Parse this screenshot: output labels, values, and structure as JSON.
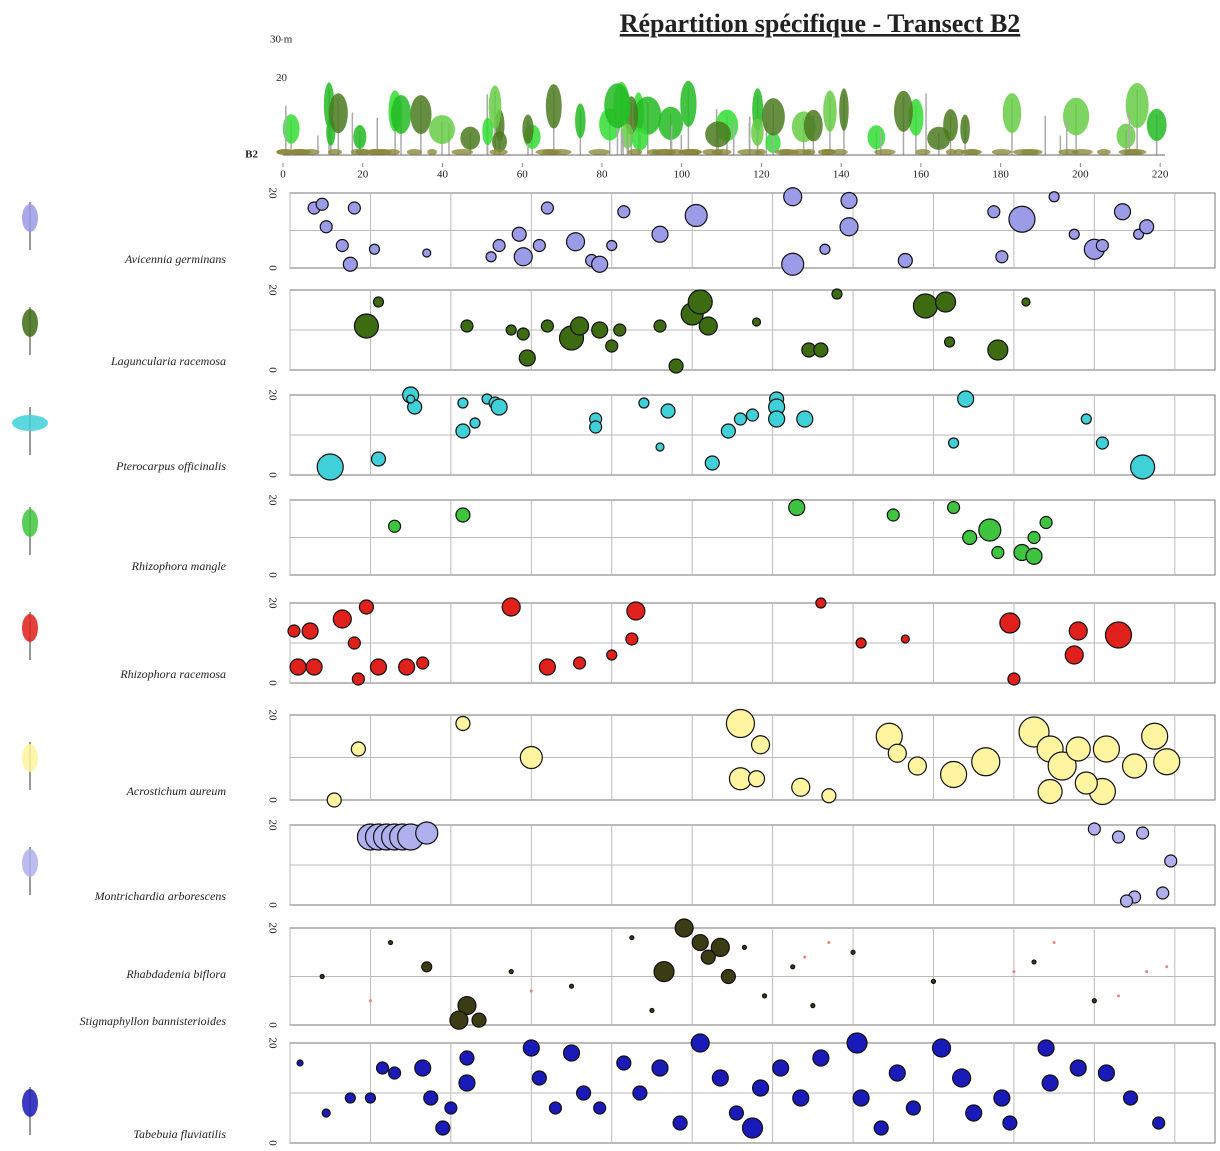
{
  "title": "Répartition spécifique - Transect B2",
  "chart_data": [
    {
      "type": "profile",
      "transect": "B2",
      "xlim": [
        0,
        230
      ],
      "xticks": [
        0,
        20,
        40,
        60,
        80,
        100,
        120,
        140,
        160,
        180,
        200,
        220
      ],
      "ylim": [
        0,
        30
      ],
      "yticks": [
        {
          "value": 30,
          "label": "30 m"
        },
        20
      ]
    },
    {
      "type": "bubble",
      "xlim": [
        0,
        230
      ],
      "ylim": [
        0,
        20
      ],
      "yticks": [
        0,
        20
      ],
      "series": [
        {
          "name": "Avicennia germinans",
          "color": "#9b9be8",
          "x": [
            6,
            8,
            9,
            13,
            15,
            16,
            21,
            34,
            50,
            52,
            57,
            58,
            62,
            64,
            71,
            75,
            77,
            80,
            83,
            92,
            101,
            125,
            125,
            133,
            139,
            139,
            153,
            175,
            177,
            182,
            190,
            195,
            200,
            202,
            207,
            211,
            213
          ],
          "values": [
            16,
            17,
            11,
            6,
            1,
            16,
            5,
            4,
            3,
            6,
            9,
            3,
            6,
            16,
            7,
            2,
            1,
            6,
            15,
            9,
            14,
            19,
            1,
            5,
            18,
            11,
            2,
            15,
            3,
            13,
            19,
            9,
            5,
            6,
            15,
            9,
            11
          ],
          "sizes": [
            6,
            6,
            6,
            6,
            7,
            6,
            5,
            4,
            5,
            6,
            7,
            9,
            6,
            6,
            9,
            6,
            8,
            5,
            6,
            8,
            11,
            9,
            11,
            5,
            8,
            9,
            7,
            6,
            6,
            13,
            5,
            5,
            10,
            6,
            8,
            5,
            7
          ]
        }
      ]
    },
    {
      "type": "bubble",
      "xlim": [
        0,
        230
      ],
      "ylim": [
        0,
        20
      ],
      "yticks": [
        0,
        20
      ],
      "series": [
        {
          "name": "Laguncularia racemosa",
          "color": "#3d6b12",
          "x": [
            19,
            22,
            44,
            55,
            58,
            59,
            64,
            70,
            72,
            77,
            80,
            82,
            92,
            96,
            100,
            102,
            104,
            116,
            129,
            132,
            136,
            158,
            163,
            164,
            176,
            183
          ],
          "values": [
            11,
            17,
            11,
            10,
            9,
            3,
            11,
            8,
            11,
            10,
            6,
            10,
            11,
            1,
            14,
            17,
            11,
            12,
            5,
            5,
            19,
            16,
            17,
            7,
            5,
            17
          ],
          "sizes": [
            12,
            5,
            6,
            5,
            6,
            8,
            6,
            12,
            9,
            8,
            6,
            6,
            6,
            7,
            11,
            12,
            9,
            4,
            7,
            7,
            5,
            12,
            10,
            5,
            10,
            4
          ]
        }
      ]
    },
    {
      "type": "bubble",
      "xlim": [
        0,
        230
      ],
      "ylim": [
        0,
        20
      ],
      "yticks": [
        0,
        20
      ],
      "series": [
        {
          "name": "Pterocarpus officinalis",
          "color": "#3fd0d8",
          "x": [
            10,
            22,
            30,
            31,
            30,
            43,
            43,
            46,
            49,
            51,
            52,
            76,
            76,
            88,
            94,
            92,
            105,
            109,
            112,
            115,
            121,
            121,
            121,
            128,
            168,
            165,
            198,
            202,
            212
          ],
          "values": [
            2,
            4,
            20,
            17,
            19,
            18,
            11,
            13,
            19,
            18,
            17,
            14,
            12,
            18,
            16,
            7,
            3,
            11,
            14,
            15,
            19,
            17,
            14,
            14,
            19,
            8,
            14,
            8,
            2
          ],
          "sizes": [
            13,
            7,
            8,
            7,
            4,
            5,
            7,
            5,
            5,
            6,
            8,
            6,
            6,
            5,
            7,
            4,
            7,
            7,
            6,
            6,
            7,
            8,
            8,
            8,
            8,
            5,
            5,
            6,
            12
          ]
        }
      ]
    },
    {
      "type": "bubble",
      "xlim": [
        0,
        230
      ],
      "ylim": [
        0,
        20
      ],
      "yticks": [
        0,
        20
      ],
      "series": [
        {
          "name": "Rhizophora mangle",
          "color": "#3ec43e",
          "x": [
            26,
            43,
            126,
            150,
            165,
            169,
            174,
            176,
            182,
            185,
            185,
            188
          ],
          "values": [
            13,
            16,
            18,
            16,
            18,
            10,
            12,
            6,
            6,
            5,
            10,
            14
          ],
          "sizes": [
            6,
            7,
            8,
            6,
            6,
            7,
            11,
            6,
            8,
            8,
            6,
            6
          ]
        }
      ]
    },
    {
      "type": "bubble",
      "xlim": [
        0,
        230
      ],
      "ylim": [
        0,
        20
      ],
      "yticks": [
        0,
        20
      ],
      "series": [
        {
          "name": "Rhizophora racemosa",
          "color": "#e0201a",
          "x": [
            1,
            2,
            6,
            5,
            13,
            16,
            19,
            17,
            22,
            29,
            33,
            55,
            64,
            72,
            80,
            86,
            85,
            132,
            142,
            153,
            179,
            180,
            196,
            195,
            206
          ],
          "values": [
            13,
            4,
            4,
            13,
            16,
            10,
            19,
            1,
            4,
            4,
            5,
            19,
            4,
            5,
            7,
            18,
            11,
            20,
            10,
            11,
            15,
            1,
            13,
            7,
            12
          ],
          "sizes": [
            6,
            8,
            8,
            8,
            9,
            6,
            7,
            6,
            8,
            8,
            6,
            9,
            8,
            6,
            5,
            9,
            6,
            5,
            5,
            4,
            10,
            6,
            9,
            9,
            13
          ]
        }
      ]
    },
    {
      "type": "bubble",
      "xlim": [
        0,
        230
      ],
      "ylim": [
        0,
        20
      ],
      "yticks": [
        0,
        20
      ],
      "series": [
        {
          "name": "Acrostichum aureum",
          "color": "#fff5a0",
          "x": [
            11,
            17,
            43,
            60,
            112,
            117,
            112,
            116,
            127,
            134,
            149,
            151,
            156,
            165,
            173,
            185,
            189,
            192,
            196,
            189,
            203,
            202,
            210,
            215,
            218,
            198
          ],
          "values": [
            0,
            12,
            18,
            10,
            18,
            13,
            5,
            5,
            3,
            1,
            15,
            11,
            8,
            6,
            9,
            16,
            12,
            8,
            12,
            2,
            12,
            2,
            8,
            15,
            9,
            4
          ],
          "sizes": [
            7,
            7,
            7,
            11,
            14,
            9,
            11,
            8,
            9,
            7,
            13,
            9,
            9,
            13,
            14,
            15,
            13,
            14,
            12,
            12,
            13,
            13,
            12,
            13,
            13,
            11
          ]
        }
      ]
    },
    {
      "type": "bubble",
      "xlim": [
        0,
        230
      ],
      "ylim": [
        0,
        20
      ],
      "yticks": [
        0,
        20
      ],
      "series": [
        {
          "name": "Montrichardia arborescens",
          "color": "#b0b0ee",
          "x": [
            20,
            22,
            24,
            26,
            28,
            30,
            34,
            200,
            206,
            212,
            219,
            217,
            210,
            208
          ],
          "values": [
            17,
            17,
            17,
            17,
            17,
            17,
            18,
            19,
            17,
            18,
            11,
            3,
            2,
            1
          ],
          "sizes": [
            13,
            13,
            13,
            13,
            13,
            13,
            11,
            6,
            6,
            6,
            6,
            6,
            6,
            6
          ]
        }
      ]
    },
    {
      "type": "bubble",
      "xlim": [
        0,
        230
      ],
      "ylim": [
        0,
        20
      ],
      "yticks": [
        0,
        20
      ],
      "series": [
        {
          "name": "Rhabdadenia biflora",
          "color": "#3c3c14",
          "text_color": "#222222",
          "x": [
            34,
            44,
            42,
            47,
            98,
            102,
            107,
            93,
            109,
            104,
            8,
            25,
            55,
            70,
            85,
            118,
            125,
            140,
            160,
            185,
            200,
            90,
            113,
            130
          ],
          "values": [
            12,
            4,
            1,
            1,
            20,
            17,
            16,
            11,
            10,
            14,
            10,
            17,
            11,
            8,
            18,
            6,
            12,
            15,
            9,
            13,
            5,
            3,
            16,
            4
          ],
          "sizes": [
            5,
            9,
            9,
            7,
            9,
            8,
            9,
            10,
            7,
            7,
            2,
            2,
            2,
            2,
            2,
            2,
            2,
            2,
            2,
            2,
            2,
            2,
            2,
            2
          ]
        },
        {
          "name": "Stigmaphyllon bannisterioides",
          "color": "#f08080",
          "text_color": "#f0902a",
          "x": [
            20,
            60,
            128,
            134,
            180,
            190,
            206,
            213,
            218
          ],
          "values": [
            5,
            7,
            14,
            17,
            11,
            17,
            6,
            11,
            12
          ],
          "sizes": [
            1.5,
            1.5,
            1.5,
            1.5,
            1.5,
            1.5,
            1.5,
            1.5,
            1.5
          ]
        }
      ]
    },
    {
      "type": "bubble",
      "xlim": [
        0,
        230
      ],
      "ylim": [
        0,
        20
      ],
      "yticks": [
        0,
        20
      ],
      "series": [
        {
          "name": "Tabebuia fluviatilis",
          "color": "#1a1ab8",
          "x": [
            2.5,
            9,
            15,
            20,
            23,
            26,
            33,
            35,
            38,
            40,
            44,
            44,
            60,
            62,
            66,
            70,
            73,
            77,
            83,
            87,
            92,
            97,
            102,
            107,
            111,
            115,
            117,
            122,
            127,
            132,
            141,
            142,
            147,
            151,
            155,
            162,
            167,
            170,
            177,
            179,
            188,
            189,
            196,
            203,
            209,
            216
          ],
          "values": [
            16,
            6,
            9,
            9,
            15,
            14,
            15,
            9,
            3,
            7,
            12,
            17,
            19,
            13,
            7,
            18,
            10,
            7,
            16,
            10,
            15,
            4,
            20,
            13,
            6,
            3,
            11,
            15,
            9,
            17,
            20,
            9,
            3,
            14,
            7,
            19,
            13,
            6,
            9,
            4,
            19,
            12,
            15,
            14,
            9,
            4
          ],
          "sizes": [
            3,
            4,
            5,
            5,
            6,
            6,
            8,
            7,
            7,
            6,
            8,
            7,
            8,
            7,
            6,
            8,
            7,
            6,
            7,
            7,
            8,
            7,
            9,
            8,
            7,
            10,
            8,
            8,
            8,
            8,
            10,
            8,
            7,
            8,
            7,
            9,
            9,
            8,
            8,
            7,
            8,
            8,
            8,
            8,
            7,
            6
          ]
        }
      ]
    }
  ]
}
